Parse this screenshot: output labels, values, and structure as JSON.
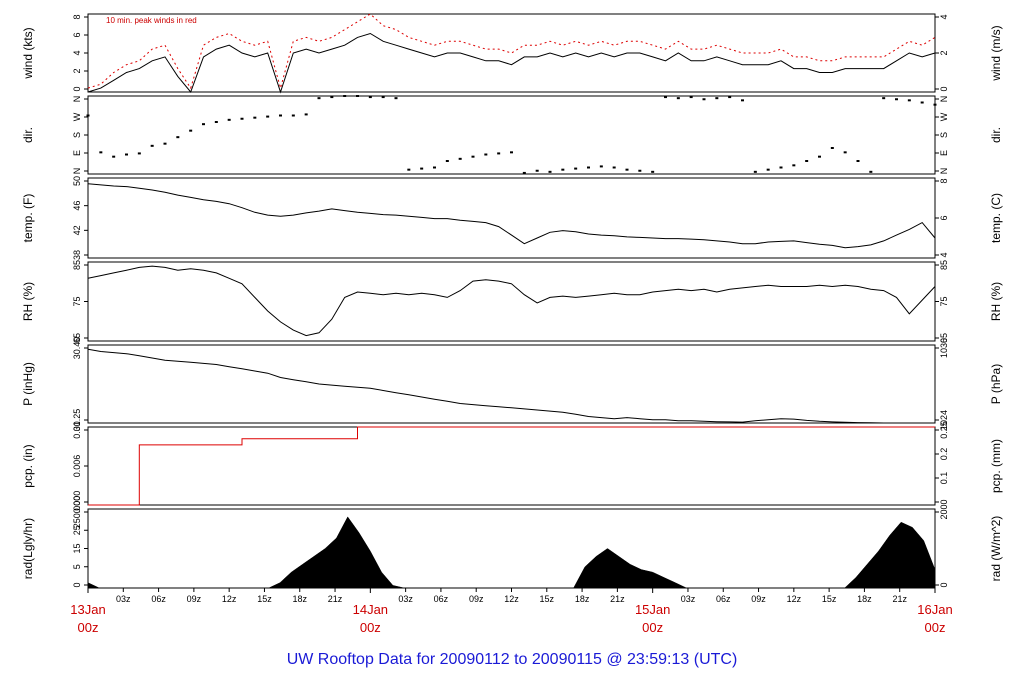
{
  "footer": "UW Rooftop Data for 20090112  to  20090115 @ 23:59:13  (UTC)",
  "colors": {
    "primary": "#000000",
    "accent": "#dd0000",
    "footer": "#1a1ad6"
  },
  "x_axis": {
    "hour_ticks": [
      "03z",
      "06z",
      "09z",
      "12z",
      "15z",
      "18z",
      "21z",
      "03z",
      "06z",
      "09z",
      "12z",
      "15z",
      "18z",
      "21z",
      "03z",
      "06z",
      "09z",
      "12z",
      "15z",
      "18z",
      "21z"
    ],
    "day_labels": [
      {
        "day": "13Jan",
        "time": "00z"
      },
      {
        "day": "14Jan",
        "time": "00z"
      },
      {
        "day": "15Jan",
        "time": "00z"
      },
      {
        "day": "16Jan",
        "time": "00z"
      }
    ]
  },
  "chart_data": [
    {
      "id": "wind",
      "type": "line",
      "ylabel_left": "wind (kts)",
      "ylabel_right": "wind (m/s)",
      "annotation": "10 min. peak winds in red",
      "left_ticks": [
        "0",
        "2",
        "4",
        "6",
        "8"
      ],
      "right_ticks": [
        "0",
        "2",
        "4"
      ],
      "ylim": [
        0,
        10
      ],
      "series": [
        {
          "values": [
            0,
            0.5,
            1.5,
            2.5,
            3,
            4,
            4.5,
            2,
            0,
            4.5,
            5.5,
            6,
            5,
            4.5,
            5,
            0,
            5,
            5.5,
            5,
            5.5,
            6,
            7,
            7.5,
            6.5,
            6,
            5.5,
            5,
            4.5,
            5,
            5,
            4.5,
            4,
            4,
            3.5,
            4.5,
            4.5,
            5,
            4.5,
            5,
            4.5,
            5,
            4.5,
            5,
            5,
            4.5,
            4,
            5,
            4,
            4,
            4.5,
            4,
            3.5,
            3.5,
            3.5,
            4,
            3,
            3,
            2.5,
            2.5,
            3,
            3,
            3,
            3,
            4,
            5,
            4.5,
            5
          ]
        },
        {
          "values": [
            0.5,
            1,
            2.5,
            3.5,
            4,
            5.5,
            6,
            3,
            0.5,
            6,
            7,
            7.5,
            6.5,
            6,
            6.5,
            0.5,
            6.5,
            7,
            6.5,
            7,
            8,
            9,
            10,
            8.5,
            8,
            7,
            6.5,
            6,
            6.5,
            6.5,
            6,
            5.5,
            5.5,
            5,
            6,
            6,
            6.5,
            6,
            6.5,
            6,
            6.5,
            6,
            6.5,
            6.5,
            6,
            5.5,
            6.5,
            5.5,
            5.5,
            6,
            5.5,
            5,
            5,
            5,
            5.5,
            4.5,
            4.5,
            4,
            4,
            4.5,
            4.5,
            4.5,
            4.5,
            5.5,
            6.5,
            6,
            7
          ]
        }
      ]
    },
    {
      "id": "dir",
      "type": "scatter",
      "ylabel_left": "dir.",
      "ylabel_right": "dir.",
      "left_ticks": [
        "N",
        "E",
        "S",
        "W",
        "N"
      ],
      "right_ticks": [
        "N",
        "E",
        "S",
        "W",
        "N"
      ],
      "ylim": [
        0,
        360
      ],
      "series": [
        {
          "values": [
            270,
            100,
            80,
            90,
            95,
            130,
            140,
            170,
            200,
            230,
            240,
            250,
            255,
            260,
            265,
            270,
            270,
            275,
            350,
            355,
            360,
            360,
            355,
            355,
            350,
            20,
            25,
            30,
            60,
            70,
            80,
            90,
            95,
            100,
            5,
            15,
            10,
            20,
            25,
            30,
            35,
            30,
            20,
            15,
            10,
            355,
            350,
            355,
            345,
            350,
            355,
            340,
            10,
            20,
            30,
            40,
            60,
            80,
            120,
            100,
            60,
            10,
            350,
            345,
            340,
            330,
            320
          ]
        }
      ]
    },
    {
      "id": "temp",
      "type": "line",
      "ylabel_left": "temp. (F)",
      "ylabel_right": "temp. (C)",
      "left_ticks": [
        "38",
        "42",
        "46",
        "50"
      ],
      "right_ticks": [
        "4",
        "6",
        "8"
      ],
      "ylim": [
        37,
        51
      ],
      "series": [
        {
          "values": [
            50,
            49.8,
            49.6,
            49.5,
            49.2,
            48.9,
            48.5,
            48,
            47.6,
            47.2,
            46.9,
            46.5,
            45.8,
            45,
            44.5,
            44.3,
            44.5,
            44.9,
            45.2,
            45.6,
            45.3,
            45,
            44.8,
            44.6,
            44.5,
            44.3,
            44.1,
            43.9,
            43.9,
            43.6,
            43.4,
            43.2,
            42.5,
            41,
            39.5,
            40.5,
            41.5,
            41.8,
            41.6,
            41.2,
            41,
            40.9,
            40.7,
            40.6,
            40.5,
            40.4,
            40.4,
            40.3,
            40.2,
            40,
            39.8,
            39.5,
            39.5,
            39.8,
            39.9,
            40,
            39.7,
            39.4,
            39.2,
            38.8,
            39,
            39.3,
            40,
            41,
            42,
            43.2,
            40.5
          ]
        }
      ]
    },
    {
      "id": "rh",
      "type": "line",
      "ylabel_left": "RH (%)",
      "ylabel_right": "RH (%)",
      "left_ticks": [
        "65",
        "75",
        "85"
      ],
      "right_ticks": [
        "65",
        "75",
        "85"
      ],
      "ylim": [
        64,
        93
      ],
      "series": [
        {
          "values": [
            87,
            88,
            89,
            90,
            91,
            91.5,
            91,
            90,
            90.5,
            90,
            89,
            87,
            85,
            80,
            75,
            71,
            68,
            66,
            67,
            72,
            80,
            82,
            81.5,
            81,
            81.5,
            81,
            81.5,
            81,
            80,
            82.5,
            86,
            86.5,
            86,
            85,
            81,
            78,
            80,
            80.5,
            80,
            80.5,
            81,
            81.5,
            81,
            81,
            82,
            82.5,
            83,
            82.5,
            83,
            82,
            83,
            83.5,
            84,
            84.5,
            84,
            84,
            84,
            84.5,
            84,
            84.5,
            84,
            83,
            82.5,
            80,
            74,
            79,
            84
          ]
        }
      ]
    },
    {
      "id": "pressure",
      "type": "line",
      "ylabel_left": "P (inHg)",
      "ylabel_right": "P (hPa)",
      "left_ticks": [
        "30.25",
        "30.40"
      ],
      "right_ticks": [
        "1024",
        "1030"
      ],
      "ylim": [
        30.22,
        30.58
      ],
      "series": [
        {
          "values": [
            30.56,
            30.55,
            30.545,
            30.54,
            30.53,
            30.52,
            30.51,
            30.505,
            30.5,
            30.495,
            30.49,
            30.48,
            30.47,
            30.46,
            30.45,
            30.43,
            30.42,
            30.41,
            30.4,
            30.395,
            30.39,
            30.385,
            30.38,
            30.37,
            30.36,
            30.35,
            30.34,
            30.33,
            30.32,
            30.31,
            30.305,
            30.3,
            30.295,
            30.29,
            30.285,
            30.28,
            30.275,
            30.27,
            30.26,
            30.25,
            30.245,
            30.24,
            30.245,
            30.24,
            30.235,
            30.235,
            30.23,
            30.23,
            30.228,
            30.226,
            30.225,
            30.224,
            30.23,
            30.235,
            30.24,
            30.238,
            30.232,
            30.228,
            30.225,
            30.223,
            30.222,
            30.221,
            30.22,
            30.22,
            30.22,
            30.22,
            30.22
          ]
        }
      ]
    },
    {
      "id": "precip",
      "type": "line",
      "ylabel_left": "pcp. (in)",
      "ylabel_right": "pcp. (mm)",
      "left_ticks": [
        "0.000",
        "0.006",
        "0.01"
      ],
      "right_ticks": [
        "0",
        "0.1",
        "0.2",
        "0.25"
      ],
      "ylim": [
        0,
        0.01
      ],
      "series": [
        {
          "values": [
            0,
            0,
            0,
            0,
            0.0077,
            0.0077,
            0.0077,
            0.0077,
            0.0077,
            0.0077,
            0.0077,
            0.0077,
            0.0085,
            0.0085,
            0.0085,
            0.0085,
            0.0085,
            0.0085,
            0.0085,
            0.0085,
            0.0085,
            0.01,
            0.01,
            0.01,
            0.01,
            0.01,
            0.01,
            0.01,
            0.01,
            0.01,
            0.01,
            0.01,
            0.01,
            0.01,
            0.01,
            0.01,
            0.01,
            0.01,
            0.01,
            0.01,
            0.01,
            0.01,
            0.01,
            0.01,
            0.01,
            0.01,
            0.01,
            0.01,
            0.01,
            0.01,
            0.01,
            0.01,
            0.01,
            0.01,
            0.01,
            0.01,
            0.01,
            0.01,
            0.01,
            0.01,
            0.01,
            0.01,
            0.01,
            0.01,
            0.01,
            0.01,
            0.01
          ]
        }
      ]
    },
    {
      "id": "radiation",
      "type": "area",
      "ylabel_left": "rad(Lgly/hr)",
      "ylabel_right": "rad (W/m^2)",
      "left_ticks": [
        "0",
        "5",
        "15",
        "25",
        "250.000"
      ],
      "right_ticks": [
        "0",
        "200"
      ],
      "ylim": [
        0,
        300
      ],
      "series": [
        {
          "values": [
            20,
            0,
            0,
            0,
            0,
            0,
            0,
            0,
            0,
            0,
            0,
            0,
            0,
            0,
            0,
            0,
            0,
            20,
            60,
            90,
            120,
            150,
            190,
            270,
            210,
            140,
            60,
            10,
            0,
            0,
            0,
            0,
            0,
            0,
            0,
            0,
            0,
            0,
            0,
            0,
            0,
            0,
            0,
            0,
            80,
            120,
            150,
            120,
            90,
            70,
            60,
            40,
            20,
            0,
            0,
            0,
            0,
            0,
            0,
            0,
            0,
            0,
            0,
            0,
            0,
            0,
            0,
            0,
            40,
            90,
            140,
            200,
            250,
            230,
            180,
            70
          ]
        }
      ]
    }
  ]
}
